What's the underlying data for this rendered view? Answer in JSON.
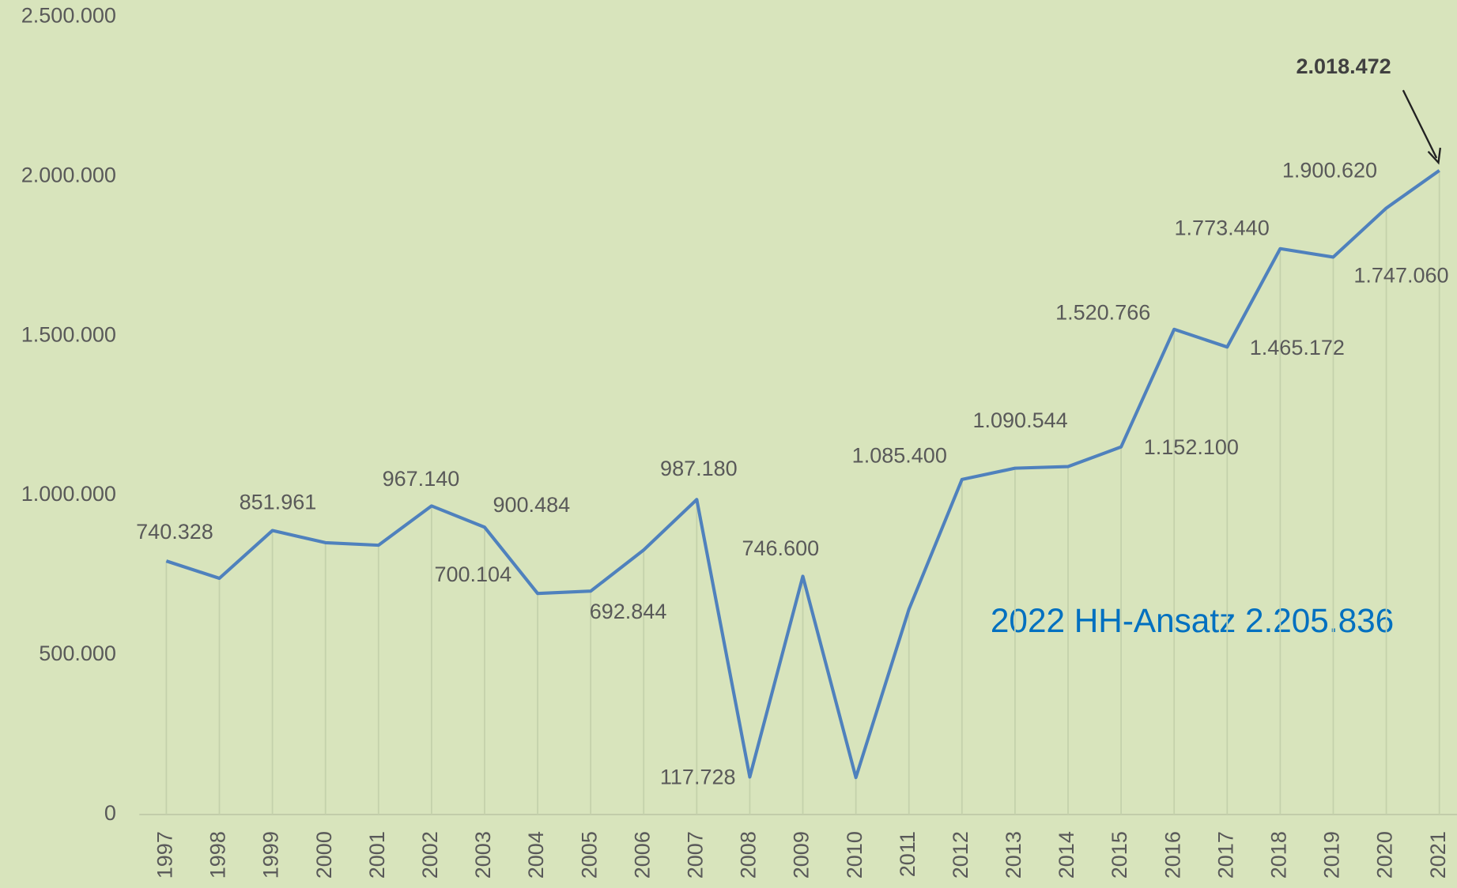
{
  "chart_data": {
    "type": "line",
    "categories": [
      "1997",
      "1998",
      "1999",
      "2000",
      "2001",
      "2002",
      "2003",
      "2004",
      "2005",
      "2006",
      "2007",
      "2008",
      "2009",
      "2010",
      "2011",
      "2012",
      "2013",
      "2014",
      "2015",
      "2016",
      "2017",
      "2018",
      "2019",
      "2020",
      "2021"
    ],
    "series": [
      {
        "color": "#4f81bd",
        "values": [
          794500,
          740328,
          890000,
          851961,
          844000,
          967140,
          900484,
          692844,
          700104,
          829000,
          987180,
          117728,
          746600,
          116000,
          643000,
          1050000,
          1085400,
          1090544,
          1152100,
          1520766,
          1465172,
          1773440,
          1747060,
          1900620,
          2018472
        ],
        "value_labels": [
          null,
          "740.328",
          null,
          "851.961",
          null,
          "967.140",
          "900.484",
          "692.844",
          "700.104",
          null,
          "987.180",
          "117.728",
          "746.600",
          null,
          null,
          null,
          "1.085.400",
          "1.090.544",
          "1.152.100",
          "1.520.766",
          "1.465.172",
          "1.773.440",
          "1.747.060",
          "1.900.620",
          "2.018.472"
        ]
      }
    ],
    "ylim": [
      0,
      2500000
    ],
    "yticks": [
      0,
      {
        "value": 500000,
        "label": "500.000"
      },
      {
        "value": 1000000,
        "label": "1.000.000"
      },
      {
        "value": 1500000,
        "label": "1.500.000"
      },
      {
        "value": 2000000,
        "label": "2.000.000"
      },
      {
        "value": 2500000,
        "label": "2.500.000"
      }
    ],
    "annotation": "2022 HH-Ansatz 2.205.836",
    "annotation_color": "#0070c0"
  }
}
